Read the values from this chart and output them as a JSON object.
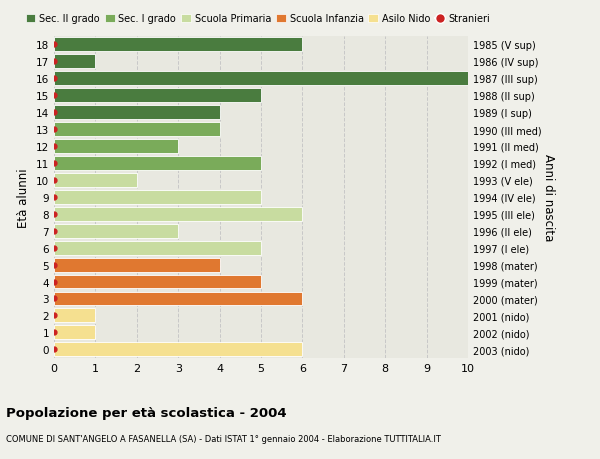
{
  "ages": [
    18,
    17,
    16,
    15,
    14,
    13,
    12,
    11,
    10,
    9,
    8,
    7,
    6,
    5,
    4,
    3,
    2,
    1,
    0
  ],
  "right_labels": [
    "1985 (V sup)",
    "1986 (IV sup)",
    "1987 (III sup)",
    "1988 (II sup)",
    "1989 (I sup)",
    "1990 (III med)",
    "1991 (II med)",
    "1992 (I med)",
    "1993 (V ele)",
    "1994 (IV ele)",
    "1995 (III ele)",
    "1996 (II ele)",
    "1997 (I ele)",
    "1998 (mater)",
    "1999 (mater)",
    "2000 (mater)",
    "2001 (nido)",
    "2002 (nido)",
    "2003 (nido)"
  ],
  "values": [
    6,
    1,
    10,
    5,
    4,
    4,
    3,
    5,
    2,
    5,
    6,
    3,
    5,
    4,
    5,
    6,
    1,
    1,
    6
  ],
  "colors": [
    "#4a7c3f",
    "#4a7c3f",
    "#4a7c3f",
    "#4a7c3f",
    "#4a7c3f",
    "#7aab5a",
    "#7aab5a",
    "#7aab5a",
    "#c8dca0",
    "#c8dca0",
    "#c8dca0",
    "#c8dca0",
    "#c8dca0",
    "#e07830",
    "#e07830",
    "#e07830",
    "#f5e090",
    "#f5e090",
    "#f5e090"
  ],
  "legend_labels": [
    "Sec. II grado",
    "Sec. I grado",
    "Scuola Primaria",
    "Scuola Infanzia",
    "Asilo Nido",
    "Stranieri"
  ],
  "legend_colors": [
    "#4a7c3f",
    "#7aab5a",
    "#c8dca0",
    "#e07830",
    "#f5e090",
    "#cc2222"
  ],
  "ylabel": "Età alunni",
  "right_ylabel": "Anni di nascita",
  "title_bold": "Popolazione per età scolastica - 2004",
  "subtitle": "COMUNE DI SANT'ANGELO A FASANELLA (SA) - Dati ISTAT 1° gennaio 2004 - Elaborazione TUTTITALIA.IT",
  "xlim": [
    0,
    10
  ],
  "background_color": "#f0f0ea",
  "bar_area_color": "#e8e8e0",
  "grid_color": "#c8c8c8",
  "stranieri_color": "#cc2222",
  "bar_height": 0.82
}
